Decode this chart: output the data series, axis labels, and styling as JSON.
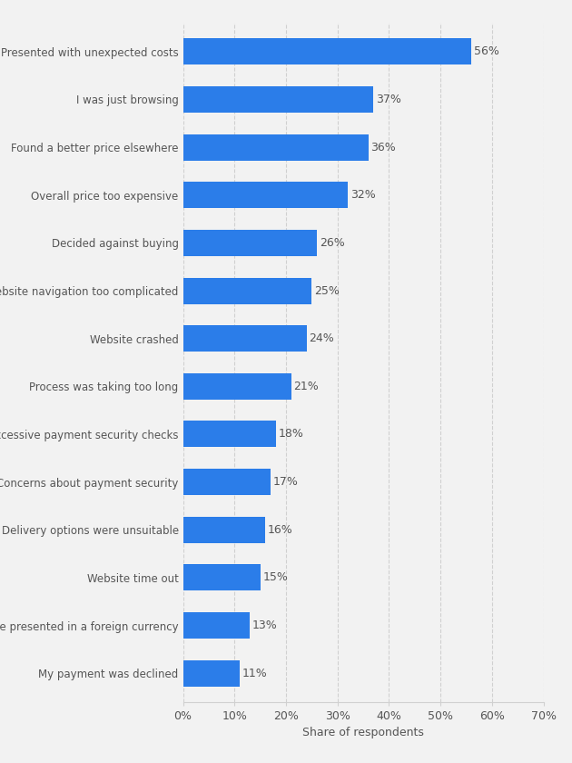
{
  "categories": [
    "My payment was declined",
    "Price presented in a foreign currency",
    "Website time out",
    "Delivery options were unsuitable",
    "Concerns about payment security",
    "Excessive payment security checks",
    "Process was taking too long",
    "Website crashed",
    "Website navigation too complicated",
    "Decided against buying",
    "Overall price too expensive",
    "Found a better price elsewhere",
    "I was just browsing",
    "Presented with unexpected costs"
  ],
  "values": [
    11,
    13,
    15,
    16,
    17,
    18,
    21,
    24,
    25,
    26,
    32,
    36,
    37,
    56
  ],
  "bar_color": "#2b7de9",
  "background_color": "#f2f2f2",
  "xlabel": "Share of respondents",
  "xlim": [
    0,
    70
  ],
  "xticks": [
    0,
    10,
    20,
    30,
    40,
    50,
    60,
    70
  ],
  "xlabel_fontsize": 9,
  "tick_label_fontsize": 9,
  "bar_label_fontsize": 9,
  "bar_height": 0.55,
  "grid_color": "#d0d0d0",
  "label_color": "#555555",
  "label_fontsize": 8.5
}
